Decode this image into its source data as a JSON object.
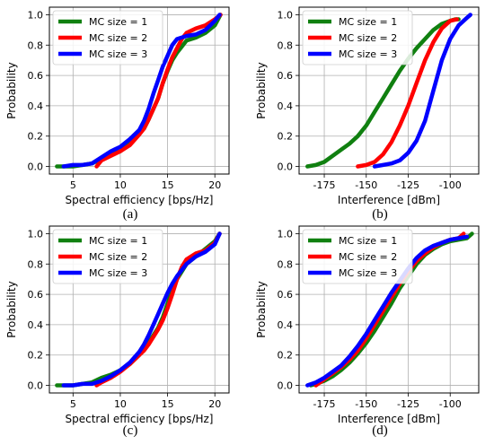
{
  "colors": {
    "series1": "#108010",
    "series2": "#ff0000",
    "series3": "#0000ff",
    "grid": "#b0b0b0"
  },
  "panel_labels": [
    "(a)",
    "(b)",
    "(c)",
    "(d)"
  ],
  "chart_data": [
    {
      "type": "line",
      "panel": "(a)",
      "xlabel": "Spectral efficiency [bps/Hz]",
      "ylabel": "Probability",
      "xlim": [
        2.5,
        21.5
      ],
      "ylim": [
        -0.05,
        1.05
      ],
      "xticks": [
        5,
        10,
        15,
        20
      ],
      "yticks": [
        0.0,
        0.2,
        0.4,
        0.6,
        0.8,
        1.0
      ],
      "grid": true,
      "legend": "top-left",
      "series": [
        {
          "name": "MC size = 1",
          "x": [
            3.3,
            5,
            6,
            7,
            8,
            9,
            10,
            11,
            12,
            12.5,
            13,
            14,
            14.5,
            15,
            15.5,
            16,
            16.5,
            17,
            18,
            19,
            20,
            20.6
          ],
          "y": [
            0.0,
            0.0,
            0.01,
            0.02,
            0.05,
            0.08,
            0.1,
            0.15,
            0.22,
            0.25,
            0.31,
            0.45,
            0.55,
            0.63,
            0.7,
            0.75,
            0.79,
            0.83,
            0.85,
            0.88,
            0.93,
            1.0
          ]
        },
        {
          "name": "MC size = 2",
          "x": [
            7.5,
            8,
            9,
            10,
            11,
            12,
            12.5,
            13,
            14,
            14.5,
            15,
            15.5,
            16,
            16.5,
            17,
            18,
            19,
            20,
            20.6
          ],
          "y": [
            0.0,
            0.04,
            0.07,
            0.1,
            0.14,
            0.21,
            0.25,
            0.31,
            0.45,
            0.55,
            0.64,
            0.72,
            0.78,
            0.84,
            0.88,
            0.91,
            0.93,
            0.97,
            1.0
          ]
        },
        {
          "name": "MC size = 3",
          "x": [
            4,
            5,
            6,
            7,
            8,
            9,
            10,
            11,
            12,
            12.5,
            13,
            13.5,
            14,
            14.5,
            15,
            15.5,
            16,
            17,
            18,
            19,
            20,
            20.5
          ],
          "y": [
            0.0,
            0.01,
            0.01,
            0.02,
            0.06,
            0.1,
            0.13,
            0.18,
            0.24,
            0.3,
            0.38,
            0.48,
            0.57,
            0.66,
            0.73,
            0.8,
            0.84,
            0.86,
            0.87,
            0.9,
            0.96,
            1.0
          ]
        }
      ]
    },
    {
      "type": "line",
      "panel": "(b)",
      "xlabel": "Interference [dBm]",
      "ylabel": "Probability",
      "xlim": [
        -190,
        -83
      ],
      "ylim": [
        -0.05,
        1.05
      ],
      "xticks": [
        -175,
        -150,
        -125,
        -100
      ],
      "yticks": [
        0.0,
        0.2,
        0.4,
        0.6,
        0.8,
        1.0
      ],
      "grid": true,
      "legend": "top-left",
      "series": [
        {
          "name": "MC size = 1",
          "x": [
            -185,
            -180,
            -175,
            -170,
            -165,
            -160,
            -155,
            -150,
            -145,
            -140,
            -135,
            -130,
            -125,
            -120,
            -115,
            -110,
            -105,
            -100,
            -97,
            -95
          ],
          "y": [
            0.0,
            0.01,
            0.03,
            0.07,
            0.11,
            0.15,
            0.2,
            0.27,
            0.36,
            0.45,
            0.54,
            0.63,
            0.71,
            0.78,
            0.84,
            0.9,
            0.94,
            0.96,
            0.97,
            0.97
          ]
        },
        {
          "name": "MC size = 2",
          "x": [
            -155,
            -150,
            -145,
            -140,
            -135,
            -130,
            -125,
            -120,
            -115,
            -110,
            -105,
            -100,
            -96
          ],
          "y": [
            0.0,
            0.01,
            0.03,
            0.08,
            0.16,
            0.27,
            0.4,
            0.55,
            0.7,
            0.82,
            0.91,
            0.96,
            0.97
          ]
        },
        {
          "name": "MC size = 3",
          "x": [
            -145,
            -140,
            -135,
            -130,
            -125,
            -120,
            -115,
            -110,
            -105,
            -100,
            -95,
            -90,
            -88
          ],
          "y": [
            0.0,
            0.01,
            0.02,
            0.04,
            0.09,
            0.17,
            0.3,
            0.5,
            0.7,
            0.84,
            0.93,
            0.98,
            1.0
          ]
        }
      ]
    },
    {
      "type": "line",
      "panel": "(c)",
      "xlabel": "Spectral efficiency [bps/Hz]",
      "ylabel": "Probability",
      "xlim": [
        2.5,
        21.5
      ],
      "ylim": [
        -0.05,
        1.05
      ],
      "xticks": [
        5,
        10,
        15,
        20
      ],
      "yticks": [
        0.0,
        0.2,
        0.4,
        0.6,
        0.8,
        1.0
      ],
      "grid": true,
      "legend": "top-left",
      "series": [
        {
          "name": "MC size = 1",
          "x": [
            3.3,
            5,
            6,
            7,
            8,
            9,
            10,
            11,
            12,
            12.5,
            13,
            13.5,
            14,
            14.5,
            15,
            15.5,
            16,
            16.5,
            17,
            18,
            19,
            20,
            20.5
          ],
          "y": [
            0.0,
            0.0,
            0.01,
            0.02,
            0.05,
            0.07,
            0.1,
            0.14,
            0.2,
            0.24,
            0.28,
            0.33,
            0.38,
            0.45,
            0.54,
            0.63,
            0.7,
            0.75,
            0.8,
            0.85,
            0.9,
            0.95,
            1.0
          ]
        },
        {
          "name": "MC size = 2",
          "x": [
            7.5,
            8,
            9,
            10,
            11,
            12,
            12.5,
            13,
            13.5,
            14,
            14.5,
            15,
            15.5,
            16,
            16.5,
            17,
            18,
            19,
            20,
            20.5
          ],
          "y": [
            0.0,
            0.02,
            0.05,
            0.09,
            0.14,
            0.2,
            0.23,
            0.27,
            0.32,
            0.37,
            0.43,
            0.51,
            0.6,
            0.7,
            0.78,
            0.83,
            0.87,
            0.89,
            0.94,
            1.0
          ]
        },
        {
          "name": "MC size = 3",
          "x": [
            4,
            5,
            6,
            7,
            8,
            9,
            10,
            11,
            12,
            12.5,
            13,
            13.5,
            14,
            14.5,
            15,
            15.5,
            16,
            17,
            18,
            19,
            20,
            20.5
          ],
          "y": [
            0.0,
            0.0,
            0.01,
            0.01,
            0.03,
            0.06,
            0.1,
            0.15,
            0.22,
            0.27,
            0.33,
            0.4,
            0.47,
            0.54,
            0.61,
            0.67,
            0.72,
            0.8,
            0.85,
            0.88,
            0.93,
            1.0
          ]
        }
      ]
    },
    {
      "type": "line",
      "panel": "(d)",
      "xlabel": "Interference [dBm]",
      "ylabel": "Probability",
      "xlim": [
        -190,
        -83
      ],
      "ylim": [
        -0.05,
        1.05
      ],
      "xticks": [
        -175,
        -150,
        -125,
        -100
      ],
      "yticks": [
        0.0,
        0.2,
        0.4,
        0.6,
        0.8,
        1.0
      ],
      "grid": true,
      "legend": "top-left",
      "series": [
        {
          "name": "MC size = 1",
          "x": [
            -183,
            -180,
            -175,
            -170,
            -165,
            -160,
            -155,
            -150,
            -145,
            -140,
            -135,
            -130,
            -125,
            -120,
            -115,
            -110,
            -105,
            -100,
            -95,
            -90,
            -87
          ],
          "y": [
            0.0,
            0.01,
            0.03,
            0.06,
            0.1,
            0.15,
            0.21,
            0.28,
            0.36,
            0.45,
            0.54,
            0.64,
            0.72,
            0.8,
            0.86,
            0.9,
            0.93,
            0.95,
            0.96,
            0.97,
            1.0
          ]
        },
        {
          "name": "MC size = 2",
          "x": [
            -180,
            -175,
            -170,
            -165,
            -160,
            -155,
            -150,
            -145,
            -140,
            -135,
            -130,
            -125,
            -120,
            -115,
            -110,
            -105,
            -100,
            -95,
            -92
          ],
          "y": [
            0.0,
            0.04,
            0.08,
            0.12,
            0.17,
            0.23,
            0.31,
            0.4,
            0.49,
            0.58,
            0.67,
            0.75,
            0.82,
            0.87,
            0.91,
            0.94,
            0.96,
            0.97,
            1.0
          ]
        },
        {
          "name": "MC size = 3",
          "x": [
            -185,
            -180,
            -175,
            -170,
            -165,
            -160,
            -155,
            -150,
            -145,
            -140,
            -135,
            -130,
            -125,
            -120,
            -115,
            -110,
            -105,
            -100,
            -95,
            -90
          ],
          "y": [
            0.0,
            0.02,
            0.05,
            0.09,
            0.13,
            0.19,
            0.26,
            0.34,
            0.43,
            0.52,
            0.61,
            0.69,
            0.77,
            0.84,
            0.89,
            0.92,
            0.94,
            0.96,
            0.97,
            0.98
          ]
        }
      ]
    }
  ]
}
